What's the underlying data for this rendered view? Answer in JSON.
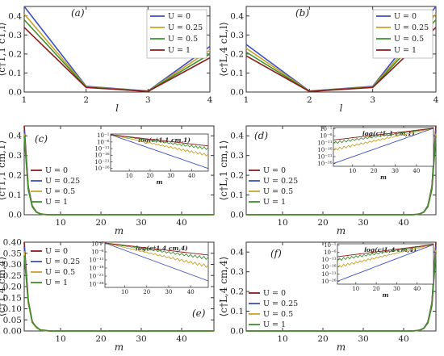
{
  "colors": {
    "U=0": "#3b4fbf",
    "U=0.25": "#c9a227",
    "U=0.5": "#3f8f2c",
    "U=1": "#8b1a1a",
    "axis": "#333333"
  },
  "chart_data": [
    {
      "id": "a",
      "type": "line",
      "panel_label": "(a)",
      "xlabel": "l",
      "ylabel": "⟨c†1,1 c1,l⟩",
      "xlim": [
        1,
        4
      ],
      "ylim": [
        0,
        0.45
      ],
      "x_ticks": [
        1,
        2,
        3,
        4
      ],
      "y_ticks": [
        0.0,
        0.1,
        0.2,
        0.3,
        0.4
      ],
      "x_tick_labels": [
        "1",
        "2",
        "3",
        "4"
      ],
      "y_tick_labels": [
        "0.0",
        "0.1",
        "0.2",
        "0.3",
        "0.4"
      ],
      "legend": "top-right",
      "series": [
        {
          "name": "U = 0",
          "color": "#3b4fbf",
          "x": [
            1,
            2,
            3,
            4
          ],
          "y": [
            0.45,
            0.03,
            0.005,
            0.24
          ]
        },
        {
          "name": "U = 0.25",
          "color": "#c9a227",
          "x": [
            1,
            2,
            3,
            4
          ],
          "y": [
            0.41,
            0.028,
            0.004,
            0.22
          ]
        },
        {
          "name": "U = 0.5",
          "color": "#3f8f2c",
          "x": [
            1,
            2,
            3,
            4
          ],
          "y": [
            0.38,
            0.026,
            0.004,
            0.2
          ]
        },
        {
          "name": "U = 1",
          "color": "#8b1a1a",
          "x": [
            1,
            2,
            3,
            4
          ],
          "y": [
            0.34,
            0.024,
            0.003,
            0.18
          ]
        }
      ]
    },
    {
      "id": "b",
      "type": "line",
      "panel_label": "(b)",
      "xlabel": "l",
      "ylabel": "⟨c†L,4 cL,l⟩",
      "xlim": [
        1,
        4
      ],
      "ylim": [
        0,
        0.45
      ],
      "x_ticks": [
        1,
        2,
        3,
        4
      ],
      "y_ticks": [
        0.0,
        0.1,
        0.2,
        0.3,
        0.4
      ],
      "x_tick_labels": [
        "1",
        "2",
        "3",
        "4"
      ],
      "y_tick_labels": [
        "0.0",
        "0.1",
        "0.2",
        "0.3",
        "0.4"
      ],
      "legend": "top-right",
      "series": [
        {
          "name": "U = 0",
          "color": "#3b4fbf",
          "x": [
            1,
            2,
            3,
            4
          ],
          "y": [
            0.25,
            0.005,
            0.03,
            0.45
          ]
        },
        {
          "name": "U = 0.25",
          "color": "#c9a227",
          "x": [
            1,
            2,
            3,
            4
          ],
          "y": [
            0.23,
            0.004,
            0.028,
            0.41
          ]
        },
        {
          "name": "U = 0.5",
          "color": "#3f8f2c",
          "x": [
            1,
            2,
            3,
            4
          ],
          "y": [
            0.21,
            0.004,
            0.026,
            0.38
          ]
        },
        {
          "name": "U = 1",
          "color": "#8b1a1a",
          "x": [
            1,
            2,
            3,
            4
          ],
          "y": [
            0.19,
            0.003,
            0.024,
            0.34
          ]
        }
      ]
    },
    {
      "id": "c",
      "type": "line",
      "panel_label": "(c)",
      "xlabel": "m",
      "ylabel": "⟨c†1,1 cm,1⟩",
      "xlim": [
        1,
        48
      ],
      "ylim": [
        0,
        0.45
      ],
      "x_ticks": [
        10,
        20,
        30,
        40
      ],
      "y_ticks": [
        0.0,
        0.1,
        0.2,
        0.3,
        0.4
      ],
      "x_tick_labels": [
        "10",
        "20",
        "30",
        "40"
      ],
      "y_tick_labels": [
        "0.0",
        "0.1",
        "0.2",
        "0.3",
        "0.4"
      ],
      "legend": "center-left",
      "decay": "left",
      "series": [
        {
          "name": "U = 0",
          "color": "#8b1a1a",
          "peak": 0.45
        },
        {
          "name": "U = 0.25",
          "color": "#3b4fbf",
          "peak": 0.43
        },
        {
          "name": "U = 0.5",
          "color": "#c9a227",
          "peak": 0.41
        },
        {
          "name": "U = 1",
          "color": "#3f8f2c",
          "peak": 0.4
        }
      ],
      "inset": {
        "label": "log(c†1,1 cm,1)",
        "x_ticks": [
          10,
          20,
          30,
          40
        ],
        "x_tick_labels": [
          "10",
          "20",
          "30",
          "40"
        ],
        "xlabel": "m",
        "y_tick_labels": [
          "10⁻¹",
          "10⁻⁶",
          "10⁻¹¹",
          "10⁻¹⁶",
          "10⁻²¹",
          "10⁻²⁶"
        ],
        "y_exponents": [
          -1,
          -6,
          -11,
          -16,
          -21,
          -26
        ],
        "ylim_exp": [
          -28,
          0
        ],
        "series": [
          {
            "name": "U = 0",
            "color": "#3b4fbf",
            "y_end_exp": -26
          },
          {
            "name": "U = 0.25",
            "color": "#c9a227",
            "y_end_exp": -16
          },
          {
            "name": "U = 0.5",
            "color": "#3f8f2c",
            "y_end_exp": -11
          },
          {
            "name": "U = 1",
            "color": "#8b1a1a",
            "y_end_exp": -9
          }
        ]
      }
    },
    {
      "id": "d",
      "type": "line",
      "panel_label": "(d)",
      "xlabel": "m",
      "ylabel": "⟨c†L,1 cm,1⟩",
      "xlim": [
        1,
        48
      ],
      "ylim": [
        0,
        0.45
      ],
      "x_ticks": [
        10,
        20,
        30,
        40
      ],
      "y_ticks": [
        0.0,
        0.1,
        0.2,
        0.3,
        0.4
      ],
      "x_tick_labels": [
        "10",
        "20",
        "30",
        "40"
      ],
      "y_tick_labels": [
        "0.0",
        "0.1",
        "0.2",
        "0.3",
        "0.4"
      ],
      "legend": "center-left",
      "decay": "right",
      "series": [
        {
          "name": "U = 0",
          "color": "#8b1a1a",
          "peak": 0.45
        },
        {
          "name": "U = 0.25",
          "color": "#3b4fbf",
          "peak": 0.43
        },
        {
          "name": "U = 0.5",
          "color": "#c9a227",
          "peak": 0.41
        },
        {
          "name": "U = 1",
          "color": "#3f8f2c",
          "peak": 0.4
        }
      ],
      "inset": {
        "label": "log(c†L,1 cm,1)",
        "x_ticks": [
          10,
          20,
          30,
          40
        ],
        "x_tick_labels": [
          "10",
          "20",
          "30",
          "40"
        ],
        "xlabel": "m",
        "y_tick_labels": [
          "10⁻¹",
          "10⁻⁶",
          "10⁻¹¹",
          "10⁻¹⁶",
          "10⁻²¹",
          "10⁻²⁶"
        ],
        "y_exponents": [
          -1,
          -6,
          -11,
          -16,
          -21,
          -26
        ],
        "ylim_exp": [
          -28,
          0
        ],
        "series": [
          {
            "name": "U = 0",
            "color": "#3b4fbf",
            "y_end_exp": -26
          },
          {
            "name": "U = 0.25",
            "color": "#c9a227",
            "y_end_exp": -16
          },
          {
            "name": "U = 0.5",
            "color": "#3f8f2c",
            "y_end_exp": -11
          },
          {
            "name": "U = 1",
            "color": "#8b1a1a",
            "y_end_exp": -9
          }
        ]
      }
    },
    {
      "id": "e",
      "type": "line",
      "panel_label": "(e)",
      "xlabel": "m",
      "ylabel": "⟨c†1,4 cm,4⟩",
      "xlim": [
        1,
        48
      ],
      "ylim": [
        0,
        0.4
      ],
      "x_ticks": [
        10,
        20,
        30,
        40
      ],
      "y_ticks": [
        0.0,
        0.05,
        0.1,
        0.15,
        0.2,
        0.25,
        0.3,
        0.35,
        0.4
      ],
      "x_tick_labels": [
        "10",
        "20",
        "30",
        "40"
      ],
      "y_tick_labels": [
        "0.00",
        "0.05",
        "0.10",
        "0.15",
        "0.20",
        "0.25",
        "0.30",
        "0.35",
        "0.40"
      ],
      "legend": "top-left",
      "decay": "left",
      "series": [
        {
          "name": "U = 0",
          "color": "#8b1a1a",
          "peak": 0.4
        },
        {
          "name": "U = 0.25",
          "color": "#3b4fbf",
          "peak": 0.38
        },
        {
          "name": "U = 0.5",
          "color": "#c9a227",
          "peak": 0.36
        },
        {
          "name": "U = 1",
          "color": "#3f8f2c",
          "peak": 0.34
        }
      ],
      "inset": {
        "label": "log(c†1,4 cm,4)",
        "x_ticks": [
          10,
          20,
          30,
          40
        ],
        "x_tick_labels": [
          "10",
          "20",
          "30",
          "40"
        ],
        "xlabel": "",
        "y_tick_labels": [
          "10⁻¹",
          "10⁻⁶",
          "10⁻¹¹",
          "10⁻¹⁶",
          "10⁻²¹",
          "10⁻²⁶"
        ],
        "y_exponents": [
          -1,
          -6,
          -11,
          -16,
          -21,
          -26
        ],
        "ylim_exp": [
          -28,
          0
        ],
        "series": [
          {
            "name": "U = 0",
            "color": "#3b4fbf",
            "y_end_exp": -24
          },
          {
            "name": "U = 0.25",
            "color": "#c9a227",
            "y_end_exp": -15
          },
          {
            "name": "U = 0.5",
            "color": "#3f8f2c",
            "y_end_exp": -10
          },
          {
            "name": "U = 1",
            "color": "#8b1a1a",
            "y_end_exp": -8
          }
        ]
      }
    },
    {
      "id": "f",
      "type": "line",
      "panel_label": "(f)",
      "xlabel": "m",
      "ylabel": "⟨c†L,4 cm,4⟩",
      "xlim": [
        1,
        48
      ],
      "ylim": [
        0,
        0.45
      ],
      "x_ticks": [
        10,
        20,
        30,
        40
      ],
      "y_ticks": [
        0.0,
        0.1,
        0.2,
        0.3,
        0.4
      ],
      "x_tick_labels": [
        "10",
        "20",
        "30",
        "40"
      ],
      "y_tick_labels": [
        "0.0",
        "0.1",
        "0.2",
        "0.3",
        "0.4"
      ],
      "legend": "center-left",
      "decay": "right",
      "series": [
        {
          "name": "U = 0",
          "color": "#8b1a1a",
          "peak": 0.45
        },
        {
          "name": "U = 0.25",
          "color": "#3b4fbf",
          "peak": 0.43
        },
        {
          "name": "U = 0.5",
          "color": "#c9a227",
          "peak": 0.41
        },
        {
          "name": "U = 1",
          "color": "#3f8f2c",
          "peak": 0.4
        }
      ],
      "inset": {
        "label": "log(c†L,4 cm,4)",
        "x_ticks": [
          10,
          20,
          30,
          40
        ],
        "x_tick_labels": [
          "10",
          "20",
          "30",
          "40"
        ],
        "xlabel": "m",
        "y_tick_labels": [
          "10⁻¹",
          "10⁻⁶",
          "10⁻¹¹",
          "10⁻¹⁶",
          "10⁻²¹",
          "10⁻²⁶"
        ],
        "y_exponents": [
          -1,
          -6,
          -11,
          -16,
          -21,
          -26
        ],
        "ylim_exp": [
          -28,
          0
        ],
        "series": [
          {
            "name": "U = 0",
            "color": "#3b4fbf",
            "y_end_exp": -26
          },
          {
            "name": "U = 0.25",
            "color": "#c9a227",
            "y_end_exp": -16
          },
          {
            "name": "U = 0.5",
            "color": "#3f8f2c",
            "y_end_exp": -11
          },
          {
            "name": "U = 1",
            "color": "#8b1a1a",
            "y_end_exp": -9
          }
        ]
      }
    }
  ]
}
